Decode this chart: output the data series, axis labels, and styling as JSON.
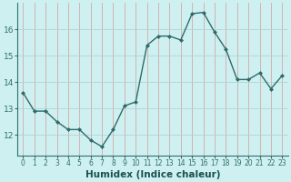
{
  "x": [
    0,
    1,
    2,
    3,
    4,
    5,
    6,
    7,
    8,
    9,
    10,
    11,
    12,
    13,
    14,
    15,
    16,
    17,
    18,
    19,
    20,
    21,
    22,
    23
  ],
  "y": [
    13.6,
    12.9,
    12.9,
    12.5,
    12.2,
    12.2,
    11.8,
    11.55,
    12.2,
    13.1,
    13.25,
    15.4,
    15.75,
    15.75,
    15.6,
    16.6,
    16.65,
    15.9,
    15.25,
    14.1,
    14.1,
    14.35,
    13.75,
    14.25
  ],
  "line_color": "#2e6b6b",
  "marker": "D",
  "markersize": 2.0,
  "linewidth": 1.0,
  "xlabel": "Humidex (Indice chaleur)",
  "xlabel_fontsize": 7.5,
  "bg_color": "#cff0f0",
  "grid_h_color": "#aed4d4",
  "grid_v_color": "#d4a8a8",
  "xlim": [
    -0.5,
    23.5
  ],
  "ylim": [
    11.2,
    17.0
  ],
  "yticks": [
    12,
    13,
    14,
    15,
    16
  ],
  "xticks": [
    0,
    1,
    2,
    3,
    4,
    5,
    6,
    7,
    8,
    9,
    10,
    11,
    12,
    13,
    14,
    15,
    16,
    17,
    18,
    19,
    20,
    21,
    22,
    23
  ],
  "xtick_fontsize": 5.5,
  "ytick_fontsize": 6.5,
  "spine_color": "#2e7070"
}
